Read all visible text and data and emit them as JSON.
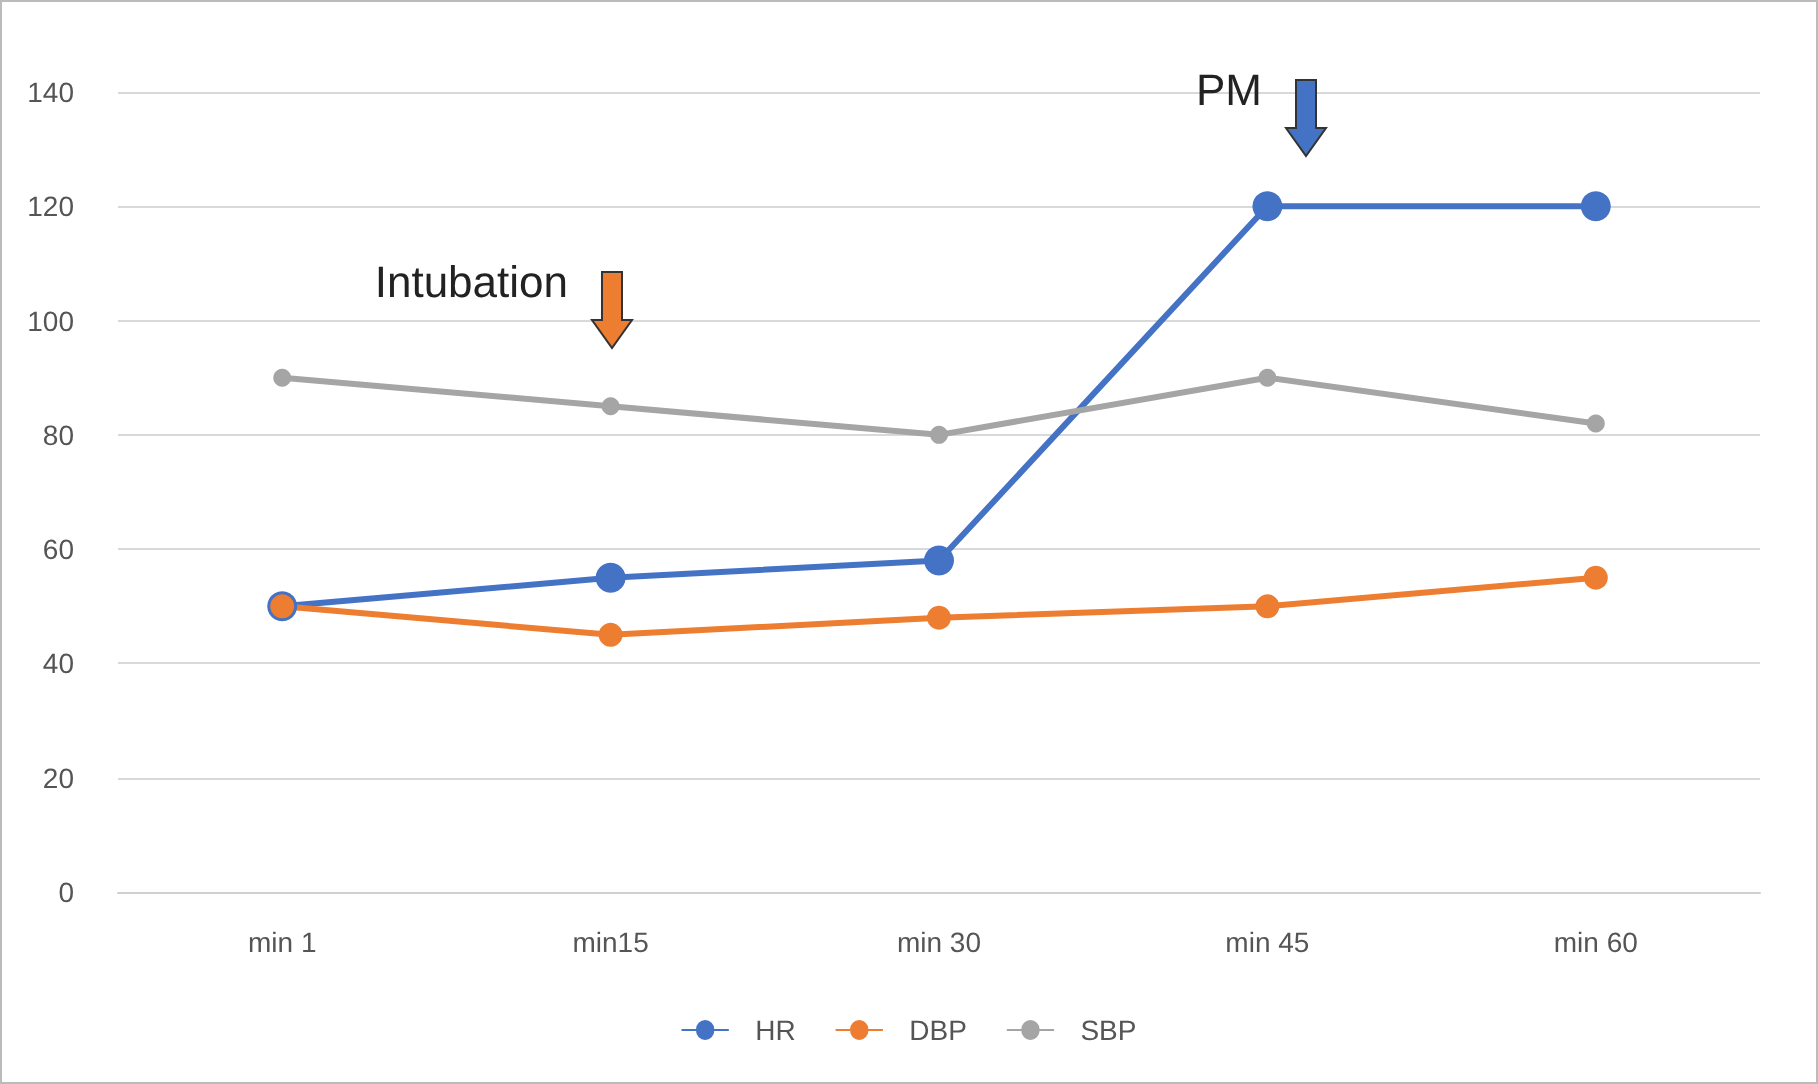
{
  "chart_data": {
    "type": "line",
    "categories": [
      "min 1",
      "min15",
      "min 30",
      "min 45",
      "min 60"
    ],
    "series": [
      {
        "name": "HR",
        "color": "#4472c4",
        "values": [
          50,
          55,
          58,
          120,
          120
        ]
      },
      {
        "name": "DBP",
        "color": "#ed7d31",
        "values": [
          50,
          45,
          48,
          50,
          55
        ]
      },
      {
        "name": "SBP",
        "color": "#a5a5a5",
        "values": [
          90,
          85,
          80,
          90,
          82
        ]
      }
    ],
    "ylim": [
      0,
      140
    ],
    "yticks": [
      0,
      20,
      40,
      60,
      80,
      100,
      120,
      140
    ],
    "grid": "y",
    "legend": "bottom",
    "marker": "circle",
    "line_style": "solid",
    "annotations": [
      "Intubation",
      "PM"
    ]
  }
}
